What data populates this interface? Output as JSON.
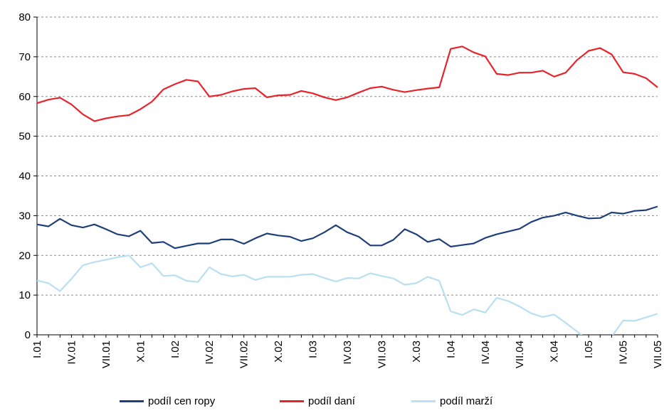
{
  "chart_data": {
    "type": "line",
    "title": "",
    "xlabel": "",
    "ylabel": "",
    "ylim": [
      0,
      80
    ],
    "yticks": [
      "0",
      "10",
      "20",
      "30",
      "40",
      "50",
      "60",
      "70",
      "80"
    ],
    "grid": "horizontal dashed",
    "legend_position": "bottom",
    "xtick_labels": [
      {
        "index": 0,
        "label": "I.01"
      },
      {
        "index": 3,
        "label": "IV.01"
      },
      {
        "index": 6,
        "label": "VII.01"
      },
      {
        "index": 9,
        "label": "X.01"
      },
      {
        "index": 12,
        "label": "I.02"
      },
      {
        "index": 15,
        "label": "IV.02"
      },
      {
        "index": 18,
        "label": "VII.02"
      },
      {
        "index": 21,
        "label": "X.02"
      },
      {
        "index": 24,
        "label": "I.03"
      },
      {
        "index": 27,
        "label": "IV.03"
      },
      {
        "index": 30,
        "label": "VII.03"
      },
      {
        "index": 33,
        "label": "X.03"
      },
      {
        "index": 36,
        "label": "I.04"
      },
      {
        "index": 39,
        "label": "IV.04"
      },
      {
        "index": 42,
        "label": "VII.04"
      },
      {
        "index": 45,
        "label": "X.04"
      },
      {
        "index": 48,
        "label": "I.05"
      },
      {
        "index": 51,
        "label": "IV.05"
      },
      {
        "index": 54,
        "label": "VII.05"
      }
    ],
    "series": [
      {
        "name": "podíl cen ropy",
        "color": "#1f3f7a",
        "values": [
          27.8,
          27.3,
          29.2,
          27.6,
          27.0,
          27.8,
          26.6,
          25.3,
          24.8,
          26.2,
          23.1,
          23.4,
          21.8,
          22.4,
          23.0,
          23.0,
          24.0,
          24.0,
          22.9,
          24.3,
          25.5,
          25.0,
          24.7,
          23.6,
          24.3,
          25.8,
          27.6,
          25.8,
          24.7,
          22.5,
          22.5,
          23.9,
          26.6,
          25.3,
          23.4,
          24.1,
          22.2,
          22.6,
          23.0,
          24.4,
          25.3,
          26.0,
          26.7,
          28.4,
          29.5,
          30.0,
          30.8,
          30.0,
          29.3,
          29.4,
          30.8,
          30.5,
          31.2,
          31.4,
          32.3
        ]
      },
      {
        "name": "podíl daní",
        "color": "#e8242b",
        "values": [
          58.3,
          59.2,
          59.7,
          58.0,
          55.5,
          53.8,
          54.5,
          55.0,
          55.3,
          56.8,
          58.7,
          61.8,
          63.1,
          64.2,
          63.8,
          60.0,
          60.4,
          61.3,
          61.9,
          62.1,
          59.8,
          60.3,
          60.4,
          61.4,
          60.8,
          59.8,
          59.1,
          59.8,
          61.0,
          62.1,
          62.5,
          61.7,
          61.1,
          61.6,
          62.0,
          62.3,
          72.0,
          72.6,
          71.1,
          70.1,
          65.7,
          65.4,
          66.0,
          66.0,
          66.5,
          65.0,
          66.0,
          69.2,
          71.5,
          72.2,
          70.6,
          66.1,
          65.7,
          64.6,
          62.3
        ]
      },
      {
        "name": "podíl marží",
        "color": "#b9dff2",
        "values": [
          13.7,
          13.0,
          11.0,
          14.1,
          17.5,
          18.3,
          18.9,
          19.5,
          20.0,
          17.0,
          18.0,
          14.8,
          15.0,
          13.6,
          13.3,
          17.0,
          15.3,
          14.7,
          15.1,
          13.8,
          14.6,
          14.6,
          14.6,
          15.1,
          15.3,
          14.3,
          13.4,
          14.3,
          14.2,
          15.5,
          14.8,
          14.2,
          12.6,
          13.0,
          14.6,
          13.6,
          5.9,
          5.0,
          6.4,
          5.6,
          9.3,
          8.5,
          7.1,
          5.4,
          4.5,
          5.1,
          3.0,
          0.8,
          -1.5,
          -2.0,
          -0.5,
          3.6,
          3.5,
          4.4,
          5.3
        ]
      }
    ]
  }
}
